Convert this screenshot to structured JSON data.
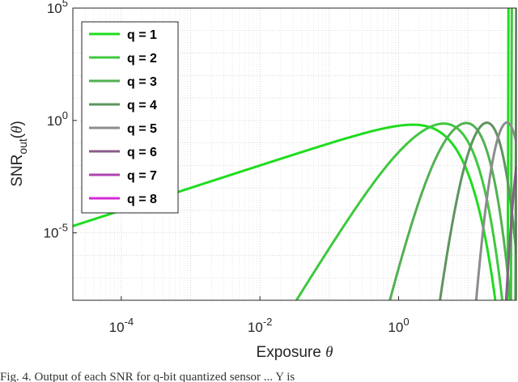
{
  "chart_data": {
    "type": "line",
    "title": "",
    "xlabel": "Exposure θ",
    "ylabel": "SNR_out(θ)",
    "xscale": "log",
    "yscale": "log",
    "xlim": [
      2e-05,
      50
    ],
    "ylim": [
      1e-08,
      100000
    ],
    "grid": true,
    "legend_position": "top-left",
    "x_ticks": [
      {
        "value": 0.0001,
        "base": "10",
        "exp": "-4"
      },
      {
        "value": 0.01,
        "base": "10",
        "exp": "-2"
      },
      {
        "value": 1,
        "base": "10",
        "exp": "0"
      }
    ],
    "y_ticks": [
      {
        "value": 1e-05,
        "base": "10",
        "exp": "-5"
      },
      {
        "value": 1,
        "base": "10",
        "exp": "0"
      },
      {
        "value": 100000,
        "base": "10",
        "exp": "5"
      }
    ],
    "series": [
      {
        "name": "q = 1",
        "color": "#1fdc1f"
      },
      {
        "name": "q = 2",
        "color": "#3fc83f"
      },
      {
        "name": "q = 3",
        "color": "#52b052"
      },
      {
        "name": "q = 4",
        "color": "#5e945e"
      },
      {
        "name": "q = 5",
        "color": "#8c8c8c"
      },
      {
        "name": "q = 6",
        "color": "#8a5c8a"
      },
      {
        "name": "q = 7",
        "color": "#b044b0"
      },
      {
        "name": "q = 8",
        "color": "#d42ad4"
      }
    ]
  },
  "caption": "Fig. 4.   Output of each SNR for q-bit quantized sensor ... Y is"
}
